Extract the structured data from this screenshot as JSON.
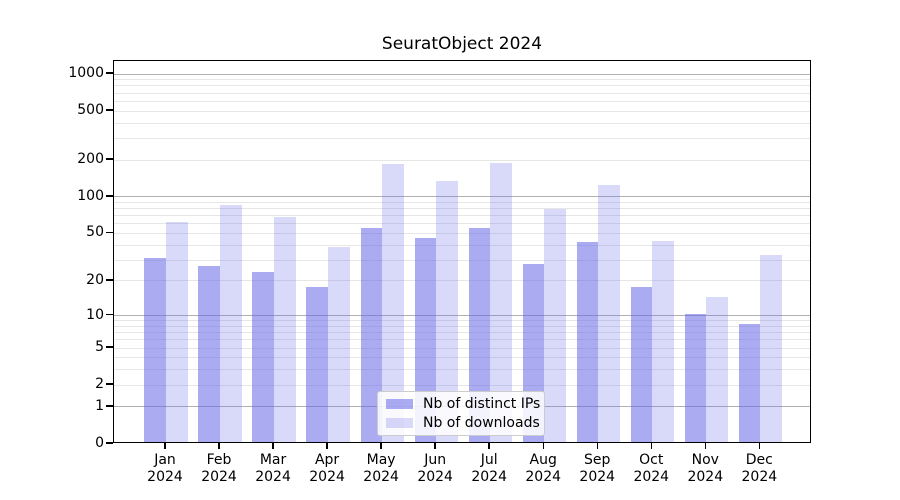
{
  "chart_data": {
    "type": "bar",
    "title": "SeuratObject 2024",
    "categories": [
      "Jan",
      "Feb",
      "Mar",
      "Apr",
      "May",
      "Jun",
      "Jul",
      "Aug",
      "Sep",
      "Oct",
      "Nov",
      "Dec"
    ],
    "category_year": "2024",
    "series": [
      {
        "name": "Nb of distinct IPs",
        "color": "#6666e6",
        "alpha": 0.55,
        "values": [
          30,
          26,
          23,
          17,
          53,
          44,
          53,
          27,
          41,
          17,
          10,
          8
        ]
      },
      {
        "name": "Nb of downloads",
        "color": "#6666e6",
        "alpha": 0.25,
        "values": [
          60,
          82,
          66,
          37,
          178,
          130,
          183,
          76,
          120,
          42,
          14,
          32
        ]
      }
    ],
    "yscale": "log10(v+1)",
    "ylim": [
      0,
      1300
    ],
    "y_ticks": [
      0,
      1,
      2,
      5,
      10,
      20,
      50,
      100,
      200,
      500,
      1000
    ],
    "grid": {
      "major_at": [
        1,
        10,
        100,
        1000
      ],
      "minor_per_decade": [
        2,
        3,
        4,
        5,
        6,
        7,
        8,
        9
      ],
      "major_color": "#b0b0b0",
      "minor_color": "#e6e6e6"
    },
    "legend_position": "lower center",
    "axis_color": "#000000",
    "background": "#ffffff"
  }
}
